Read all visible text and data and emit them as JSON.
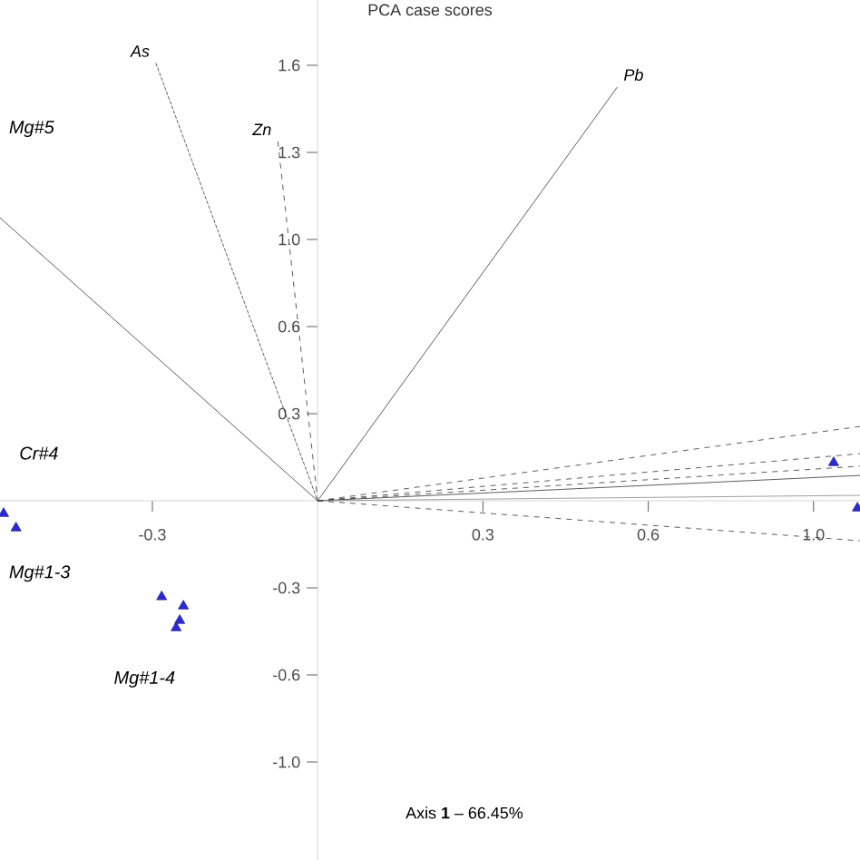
{
  "chart_data": {
    "type": "scatter",
    "title": "PCA case scores",
    "xlabel": "Axis **1** – 66.45%",
    "xlim": [
      -0.615,
      1.05
    ],
    "ylim": [
      -1.32,
      1.84
    ],
    "xticks": [
      {
        "value": -0.32,
        "label": "-0.3"
      },
      {
        "value": 0.32,
        "label": "0.3"
      },
      {
        "value": 0.64,
        "label": "0.6"
      },
      {
        "value": 0.96,
        "label": "1.0"
      }
    ],
    "yticks": [
      {
        "value": -0.96,
        "label": "-1.0"
      },
      {
        "value": -0.64,
        "label": "-0.6"
      },
      {
        "value": -0.32,
        "label": "-0.3"
      },
      {
        "value": 0.32,
        "label": "0.3"
      },
      {
        "value": 0.64,
        "label": "0.6"
      },
      {
        "value": 0.96,
        "label": "1.0"
      },
      {
        "value": 1.28,
        "label": "1.3"
      },
      {
        "value": 1.6,
        "label": "1.6"
      }
    ],
    "grid": false,
    "series": [
      {
        "marker": "triangle",
        "color": "#2b2bd6",
        "x": [
          -0.608,
          -0.584,
          -0.302,
          -0.26,
          -0.267,
          -0.274,
          0.999,
          1.045
        ],
        "values": [
          -0.047,
          -0.1,
          -0.353,
          -0.387,
          -0.44,
          -0.467,
          0.14,
          -0.027
        ]
      },
      {
        "type": "line",
        "name": "As",
        "line_style": "dotted",
        "color": "#333333",
        "x": [
          -0.313,
          0
        ],
        "values": [
          1.607,
          0
        ]
      },
      {
        "type": "line",
        "name": "Zn",
        "line_style": "dashed",
        "color": "#333333",
        "x": [
          -0.077,
          0
        ],
        "values": [
          1.32,
          0
        ]
      },
      {
        "type": "line",
        "name": "Pb",
        "line_style": "solid",
        "color": "#333333",
        "x": [
          0,
          0.58
        ],
        "values": [
          0,
          1.52
        ]
      },
      {
        "type": "line",
        "line_style": "solid",
        "color": "#333333",
        "x": [
          0,
          -0.615
        ],
        "values": [
          0,
          1.04
        ]
      },
      {
        "type": "line",
        "line_style": "dashed",
        "color": "#333333",
        "x": [
          0,
          1.05
        ],
        "values": [
          0,
          0.273
        ]
      },
      {
        "type": "line",
        "line_style": "dashed",
        "color": "#333333",
        "x": [
          0,
          1.05
        ],
        "values": [
          0,
          0.173
        ]
      },
      {
        "type": "line",
        "line_style": "dashed",
        "color": "#333333",
        "x": [
          0,
          1.05
        ],
        "values": [
          0,
          0.127
        ]
      },
      {
        "type": "line",
        "line_style": "solid",
        "color": "#333333",
        "x": [
          0,
          1.05
        ],
        "values": [
          0,
          0.093
        ]
      },
      {
        "type": "line",
        "line_style": "solid",
        "color": "#888888",
        "x": [
          0,
          1.05
        ],
        "values": [
          0,
          0.02
        ]
      },
      {
        "type": "line",
        "line_style": "dashed",
        "color": "#333333",
        "x": [
          0,
          1.05
        ],
        "values": [
          0,
          -0.147
        ]
      }
    ],
    "annotations": [
      "Mg#5",
      "Cr#4",
      "Mg#1-3",
      "Mg#1-4"
    ]
  }
}
